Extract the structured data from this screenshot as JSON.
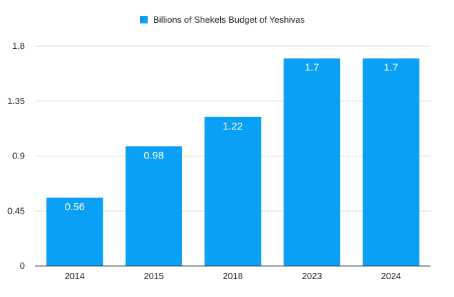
{
  "chart_data": {
    "type": "bar",
    "categories": [
      "2014",
      "2015",
      "2018",
      "2023",
      "2024"
    ],
    "series": [
      {
        "name": "Billions of Shekels Budget of Yeshivas",
        "values": [
          0.56,
          0.98,
          1.22,
          1.7,
          1.7
        ],
        "color": "#0aa0f5"
      }
    ],
    "data_labels": [
      "0.56",
      "0.98",
      "1.22",
      "1.7",
      "1.7"
    ],
    "yticks": [
      "0",
      "0.45",
      "0.9",
      "1.35",
      "1.8"
    ],
    "ylim": [
      0,
      1.8
    ],
    "grid": true,
    "legend_position": "top-center"
  }
}
